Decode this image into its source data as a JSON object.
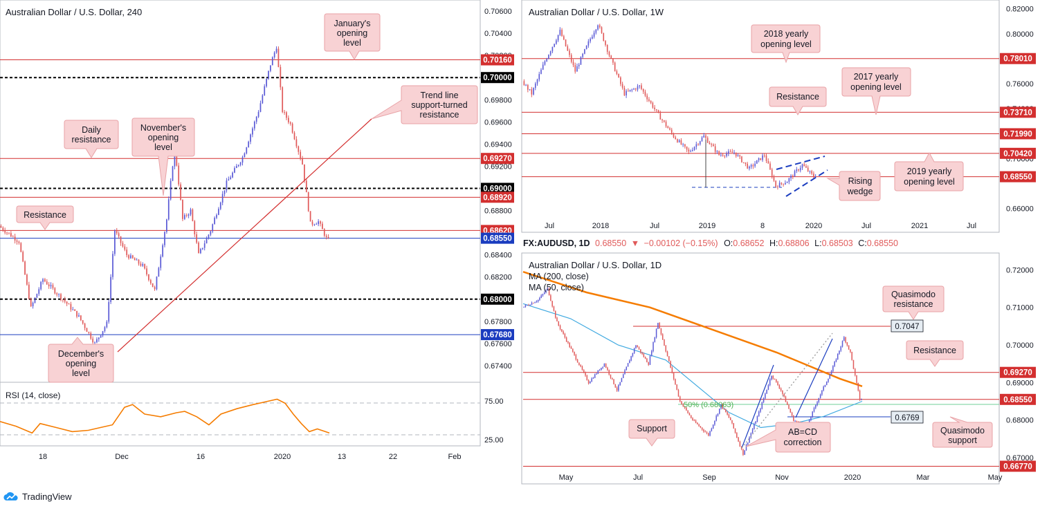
{
  "brand": {
    "name": "TradingView",
    "logo_icon": "tradingview-cloud-icon"
  },
  "colors": {
    "up": "#5b5bd6",
    "down": "#e05a5a",
    "level": "#d32f2f",
    "blue_level": "#1a3cbf",
    "ma200": "#f57c00",
    "ma50": "#3fa9e0",
    "rsi": "#f57c00",
    "note_bg": "#f8d2d4",
    "note_border": "#e8a2a6"
  },
  "chart_data": [
    {
      "id": "h4",
      "type": "candlestick",
      "title": "Australian Dollar / U.S. Dollar, 240",
      "x_ticks": [
        "18",
        "Dec",
        "16",
        "2020",
        "13",
        "22",
        "Feb"
      ],
      "y_ticks": [
        "0.70600",
        "0.70400",
        "0.70200",
        "0.69800",
        "0.69600",
        "0.69400",
        "0.69200",
        "0.68800",
        "0.68400",
        "0.68200",
        "0.67800",
        "0.67600",
        "0.67400"
      ],
      "ylim": [
        0.6725,
        0.707
      ],
      "candles": {
        "start": 0.6866,
        "end": 0.6855,
        "waypoints": [
          [
            0,
            0.6866
          ],
          [
            10,
            0.6852
          ],
          [
            16,
            0.6792
          ],
          [
            22,
            0.6818
          ],
          [
            32,
            0.68
          ],
          [
            40,
            0.6784
          ],
          [
            48,
            0.676
          ],
          [
            54,
            0.6778
          ],
          [
            58,
            0.6862
          ],
          [
            64,
            0.684
          ],
          [
            72,
            0.683
          ],
          [
            78,
            0.6808
          ],
          [
            84,
            0.6872
          ],
          [
            88,
            0.6938
          ],
          [
            92,
            0.6872
          ],
          [
            96,
            0.688
          ],
          [
            100,
            0.684
          ],
          [
            106,
            0.6862
          ],
          [
            114,
            0.6905
          ],
          [
            122,
            0.6928
          ],
          [
            130,
            0.697
          ],
          [
            136,
            0.7012
          ],
          [
            139,
            0.7028
          ],
          [
            142,
            0.697
          ],
          [
            146,
            0.6958
          ],
          [
            152,
            0.6922
          ],
          [
            156,
            0.6868
          ],
          [
            160,
            0.687
          ],
          [
            164,
            0.6855
          ]
        ]
      },
      "levels": [
        {
          "label": "0.70160",
          "value": 0.7016,
          "style": "red"
        },
        {
          "label": "0.70000",
          "value": 0.7,
          "style": "black-dashed"
        },
        {
          "label": "0.69270",
          "value": 0.6927,
          "style": "red"
        },
        {
          "label": "0.69000",
          "value": 0.69,
          "style": "black-dashed"
        },
        {
          "label": "0.68920",
          "value": 0.6892,
          "style": "red"
        },
        {
          "label": "0.68620",
          "value": 0.6862,
          "style": "red"
        },
        {
          "label": "0.68550",
          "value": 0.6855,
          "style": "blue"
        },
        {
          "label": "0.68000",
          "value": 0.68,
          "style": "black-dashed"
        },
        {
          "label": "0.67680",
          "value": 0.6768,
          "style": "blue"
        }
      ],
      "annotations": [
        "January's opening level",
        "Trend line support-turned resistance",
        "Daily resistance",
        "November's opening level",
        "Resistance",
        "December's opening level"
      ]
    },
    {
      "id": "rsi",
      "type": "line",
      "title": "RSI (14, close)",
      "y_ticks": [
        "75.00",
        "25.00"
      ],
      "ylim": [
        12,
        100
      ],
      "values": [
        [
          0,
          45
        ],
        [
          8,
          38
        ],
        [
          16,
          28
        ],
        [
          20,
          42
        ],
        [
          28,
          36
        ],
        [
          36,
          30
        ],
        [
          44,
          32
        ],
        [
          50,
          36
        ],
        [
          56,
          40
        ],
        [
          62,
          66
        ],
        [
          66,
          70
        ],
        [
          72,
          56
        ],
        [
          80,
          52
        ],
        [
          88,
          58
        ],
        [
          92,
          60
        ],
        [
          98,
          52
        ],
        [
          104,
          40
        ],
        [
          110,
          56
        ],
        [
          118,
          64
        ],
        [
          126,
          70
        ],
        [
          132,
          74
        ],
        [
          138,
          78
        ],
        [
          142,
          72
        ],
        [
          146,
          56
        ],
        [
          150,
          42
        ],
        [
          154,
          30
        ],
        [
          158,
          34
        ],
        [
          162,
          30
        ],
        [
          164,
          28
        ]
      ]
    },
    {
      "id": "weekly",
      "type": "candlestick",
      "title": "Australian Dollar / U.S. Dollar, 1W",
      "x_ticks": [
        "Jul",
        "2018",
        "Jul",
        "2019",
        "8",
        "2020",
        "Jul",
        "2021",
        "Jul"
      ],
      "y_ticks": [
        "0.82000",
        "0.80000",
        "0.76000",
        "0.74000",
        "0.70000",
        "0.66000"
      ],
      "ylim": [
        0.641,
        0.827
      ],
      "candles": {
        "start": 0.762,
        "end": 0.6855,
        "waypoints": [
          [
            0,
            0.762
          ],
          [
            5,
            0.752
          ],
          [
            12,
            0.778
          ],
          [
            20,
            0.802
          ],
          [
            28,
            0.77
          ],
          [
            36,
            0.796
          ],
          [
            40,
            0.808
          ],
          [
            46,
            0.783
          ],
          [
            54,
            0.752
          ],
          [
            62,
            0.758
          ],
          [
            72,
            0.735
          ],
          [
            80,
            0.718
          ],
          [
            88,
            0.705
          ],
          [
            96,
            0.718
          ],
          [
            104,
            0.703
          ],
          [
            112,
            0.705
          ],
          [
            120,
            0.692
          ],
          [
            128,
            0.703
          ],
          [
            134,
            0.678
          ],
          [
            140,
            0.682
          ],
          [
            148,
            0.695
          ],
          [
            154,
            0.6855
          ]
        ]
      },
      "levels": [
        {
          "label": "0.78010",
          "value": 0.7801
        },
        {
          "label": "0.73710",
          "value": 0.7371
        },
        {
          "label": "0.71990",
          "value": 0.7199
        },
        {
          "label": "0.70420",
          "value": 0.7042
        },
        {
          "label": "0.68550",
          "value": 0.6855
        }
      ],
      "annotations": [
        "2018 yearly opening level",
        "2017 yearly opening level",
        "Resistance",
        "2019 yearly opening level",
        "Rising wedge"
      ]
    },
    {
      "id": "daily",
      "type": "candlestick",
      "title": "Australian Dollar / U.S. Dollar, 1D",
      "symbol_header": {
        "symbol": "FX:AUDUSD, 1D",
        "price": "0.68550",
        "arrow": "▼",
        "change": "−0.00102 (−0.15%)",
        "o_label": "O:",
        "o": "0.68652",
        "h_label": "H:",
        "h": "0.68806",
        "l_label": "L:",
        "l": "0.68503",
        "c_label": "C:",
        "c": "0.68550"
      },
      "x_ticks": [
        "May",
        "Jul",
        "Sep",
        "Nov",
        "2020",
        "Mar",
        "May"
      ],
      "y_ticks": [
        "0.72000",
        "0.71000",
        "0.70000",
        "0.69000",
        "0.68000",
        "0.67000"
      ],
      "ylim": [
        0.663,
        0.7245
      ],
      "candles": {
        "start": 0.71,
        "end": 0.6855,
        "waypoints": [
          [
            0,
            0.71
          ],
          [
            10,
            0.712
          ],
          [
            16,
            0.715
          ],
          [
            22,
            0.706
          ],
          [
            32,
            0.698
          ],
          [
            42,
            0.69
          ],
          [
            52,
            0.695
          ],
          [
            60,
            0.688
          ],
          [
            72,
            0.7
          ],
          [
            80,
            0.695
          ],
          [
            86,
            0.706
          ],
          [
            92,
            0.697
          ],
          [
            100,
            0.685
          ],
          [
            108,
            0.68
          ],
          [
            118,
            0.676
          ],
          [
            126,
            0.684
          ],
          [
            132,
            0.68
          ],
          [
            140,
            0.671
          ],
          [
            150,
            0.682
          ],
          [
            158,
            0.692
          ],
          [
            164,
            0.688
          ],
          [
            172,
            0.68
          ],
          [
            180,
            0.678
          ],
          [
            188,
            0.686
          ],
          [
            196,
            0.693
          ],
          [
            204,
            0.702
          ],
          [
            208,
            0.698
          ],
          [
            214,
            0.6855
          ]
        ]
      },
      "ma200": [
        [
          0,
          0.7195
        ],
        [
          40,
          0.714
        ],
        [
          80,
          0.71
        ],
        [
          120,
          0.704
        ],
        [
          160,
          0.698
        ],
        [
          200,
          0.691
        ],
        [
          214,
          0.689
        ]
      ],
      "ma50": [
        [
          0,
          0.711
        ],
        [
          30,
          0.707
        ],
        [
          60,
          0.7
        ],
        [
          90,
          0.696
        ],
        [
          110,
          0.689
        ],
        [
          130,
          0.682
        ],
        [
          150,
          0.678
        ],
        [
          170,
          0.679
        ],
        [
          190,
          0.681
        ],
        [
          214,
          0.685
        ]
      ],
      "ma200_label": "MA (200, close)",
      "ma50_label": "MA (50, close)",
      "fib_label": "50% (0.68063)",
      "levels": [
        {
          "label": "0.69270",
          "value": 0.6927
        },
        {
          "label": "0.68550",
          "value": 0.6855
        },
        {
          "label": "0.66770",
          "value": 0.6677
        }
      ],
      "callouts": [
        {
          "label": "0.7047",
          "value": 0.7047
        },
        {
          "label": "0.6769",
          "value": 0.6769
        }
      ],
      "annotations": [
        "Quasimodo resistance",
        "Resistance",
        "Support",
        "AB=CD correction",
        "Quasimodo support"
      ]
    }
  ]
}
